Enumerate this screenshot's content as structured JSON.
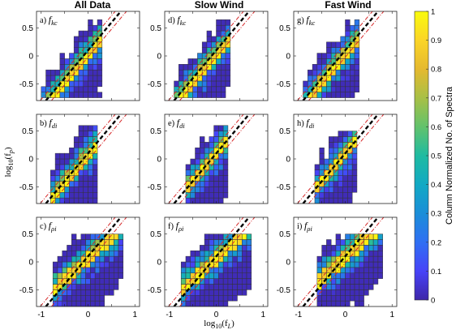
{
  "figure": {
    "column_titles": [
      "All Data",
      "Slow Wind",
      "Fast Wind"
    ],
    "colorbar": {
      "label": "Column Normalized No. of Spectra",
      "ticks": [
        "0",
        "0.1",
        "0.2",
        "0.3",
        "0.4",
        "0.5",
        "0.6",
        "0.7",
        "0.8",
        "0.9",
        "1"
      ],
      "colormap": [
        "#3e26a8",
        "#4743f8",
        "#2f6ff3",
        "#1b8ed8",
        "#12a9c4",
        "#1ebba1",
        "#62c26c",
        "#a8c046",
        "#e5b92f",
        "#fbd527",
        "#f9fb0e"
      ]
    },
    "ylabel": {
      "main": "log",
      "sub": "10",
      "arg": "(f",
      "argsub": "p",
      "close": ")"
    },
    "xlabel": {
      "main": "log",
      "sub": "10",
      "arg": "(f",
      "argsub": "L",
      "close": ")"
    },
    "panel_labels": [
      [
        "a)",
        "kc"
      ],
      [
        "d)",
        "kc"
      ],
      [
        "g)",
        "kc"
      ],
      [
        "b)",
        "di"
      ],
      [
        "e)",
        "di"
      ],
      [
        "h)",
        "di"
      ],
      [
        "c)",
        "ρi"
      ],
      [
        "f)",
        "ρi"
      ],
      [
        "i)",
        "ρi"
      ]
    ],
    "x_ticks": [
      "-1",
      "0",
      "1"
    ],
    "y_ticks": [
      "0.5",
      "0",
      "-0.5"
    ],
    "line_colors": {
      "identity": "#000000",
      "band": "#d62728"
    }
  },
  "chart_data": [
    {
      "panel": "a",
      "type": "heatmap",
      "column": "All Data",
      "row_label": "f_kc",
      "xlim": [
        -1.1,
        1.1
      ],
      "ylim": [
        -0.8,
        0.8
      ],
      "cell_size": 0.1,
      "ridge": {
        "slope": 1.0,
        "intercept": 0.02
      },
      "spread": 0.28,
      "xrange": [
        -0.95,
        0.25
      ],
      "yrange": [
        -0.7,
        0.65
      ],
      "seed": 11,
      "lines": {
        "identity": [
          [
            -0.9,
            -0.8
          ],
          [
            0.7,
            0.8
          ]
        ],
        "band_offset": 0.12
      }
    },
    {
      "panel": "d",
      "type": "heatmap",
      "column": "Slow Wind",
      "row_label": "f_kc",
      "xlim": [
        -1.1,
        1.1
      ],
      "ylim": [
        -0.8,
        0.8
      ],
      "cell_size": 0.1,
      "ridge": {
        "slope": 1.0,
        "intercept": 0.02
      },
      "spread": 0.26,
      "xrange": [
        -0.85,
        0.25
      ],
      "yrange": [
        -0.7,
        0.65
      ],
      "seed": 23,
      "lines": {
        "identity": [
          [
            -0.9,
            -0.8
          ],
          [
            0.7,
            0.8
          ]
        ],
        "band_offset": 0.12
      }
    },
    {
      "panel": "g",
      "type": "heatmap",
      "column": "Fast Wind",
      "row_label": "f_kc",
      "xlim": [
        -1.1,
        1.1
      ],
      "ylim": [
        -0.8,
        0.8
      ],
      "cell_size": 0.1,
      "ridge": {
        "slope": 1.0,
        "intercept": 0.02
      },
      "spread": 0.28,
      "xrange": [
        -0.85,
        0.25
      ],
      "yrange": [
        -0.7,
        0.6
      ],
      "seed": 37,
      "lines": {
        "identity": [
          [
            -0.9,
            -0.8
          ],
          [
            0.7,
            0.8
          ]
        ],
        "band_offset": 0.12
      }
    },
    {
      "panel": "b",
      "type": "heatmap",
      "column": "All Data",
      "row_label": "f_di",
      "xlim": [
        -1.1,
        1.1
      ],
      "ylim": [
        -0.8,
        0.8
      ],
      "cell_size": 0.1,
      "ridge": {
        "slope": 1.0,
        "intercept": 0.08
      },
      "spread": 0.32,
      "xrange": [
        -0.75,
        0.2
      ],
      "yrange": [
        -0.75,
        0.6
      ],
      "seed": 41,
      "lines": {
        "identity": [
          [
            -0.9,
            -0.8
          ],
          [
            0.7,
            0.8
          ]
        ],
        "band_offset": 0.12
      }
    },
    {
      "panel": "e",
      "type": "heatmap",
      "column": "Slow Wind",
      "row_label": "f_di",
      "xlim": [
        -1.1,
        1.1
      ],
      "ylim": [
        -0.8,
        0.8
      ],
      "cell_size": 0.1,
      "ridge": {
        "slope": 1.0,
        "intercept": 0.08
      },
      "spread": 0.3,
      "xrange": [
        -0.6,
        0.2
      ],
      "yrange": [
        -0.75,
        0.6
      ],
      "seed": 53,
      "lines": {
        "identity": [
          [
            -0.9,
            -0.8
          ],
          [
            0.7,
            0.8
          ]
        ],
        "band_offset": 0.12
      }
    },
    {
      "panel": "h",
      "type": "heatmap",
      "column": "Fast Wind",
      "row_label": "f_di",
      "xlim": [
        -1.1,
        1.1
      ],
      "ylim": [
        -0.8,
        0.8
      ],
      "cell_size": 0.1,
      "ridge": {
        "slope": 1.0,
        "intercept": 0.08
      },
      "spread": 0.3,
      "xrange": [
        -0.6,
        0.2
      ],
      "yrange": [
        -0.75,
        0.5
      ],
      "seed": 67,
      "lines": {
        "identity": [
          [
            -0.9,
            -0.8
          ],
          [
            0.7,
            0.8
          ]
        ],
        "band_offset": 0.12
      }
    },
    {
      "panel": "c",
      "type": "heatmap",
      "column": "All Data",
      "row_label": "f_ρi",
      "xlim": [
        -1.1,
        1.1
      ],
      "ylim": [
        -0.8,
        0.8
      ],
      "cell_size": 0.1,
      "ridge": {
        "slope": 0.75,
        "intercept": 0.05
      },
      "spread": 0.35,
      "xrange": [
        -0.7,
        0.75
      ],
      "yrange": [
        -0.75,
        0.45
      ],
      "seed": 71,
      "lines": {
        "identity": [
          [
            -0.9,
            -0.8
          ],
          [
            0.7,
            0.8
          ]
        ],
        "band_offset": 0.12
      }
    },
    {
      "panel": "f",
      "type": "heatmap",
      "column": "Slow Wind",
      "row_label": "f_ρi",
      "xlim": [
        -1.1,
        1.1
      ],
      "ylim": [
        -0.8,
        0.8
      ],
      "cell_size": 0.1,
      "ridge": {
        "slope": 0.75,
        "intercept": 0.05
      },
      "spread": 0.35,
      "xrange": [
        -0.7,
        0.75
      ],
      "yrange": [
        -0.75,
        0.45
      ],
      "seed": 83,
      "lines": {
        "identity": [
          [
            -0.9,
            -0.8
          ],
          [
            0.7,
            0.8
          ]
        ],
        "band_offset": 0.12
      }
    },
    {
      "panel": "i",
      "type": "heatmap",
      "column": "Fast Wind",
      "row_label": "f_ρi",
      "xlim": [
        -1.1,
        1.1
      ],
      "ylim": [
        -0.8,
        0.8
      ],
      "cell_size": 0.1,
      "ridge": {
        "slope": 0.75,
        "intercept": 0.08
      },
      "spread": 0.35,
      "xrange": [
        -0.55,
        0.75
      ],
      "yrange": [
        -0.75,
        0.45
      ],
      "seed": 97,
      "lines": {
        "identity": [
          [
            -0.9,
            -0.8
          ],
          [
            0.7,
            0.8
          ]
        ],
        "band_offset": 0.12
      }
    }
  ]
}
